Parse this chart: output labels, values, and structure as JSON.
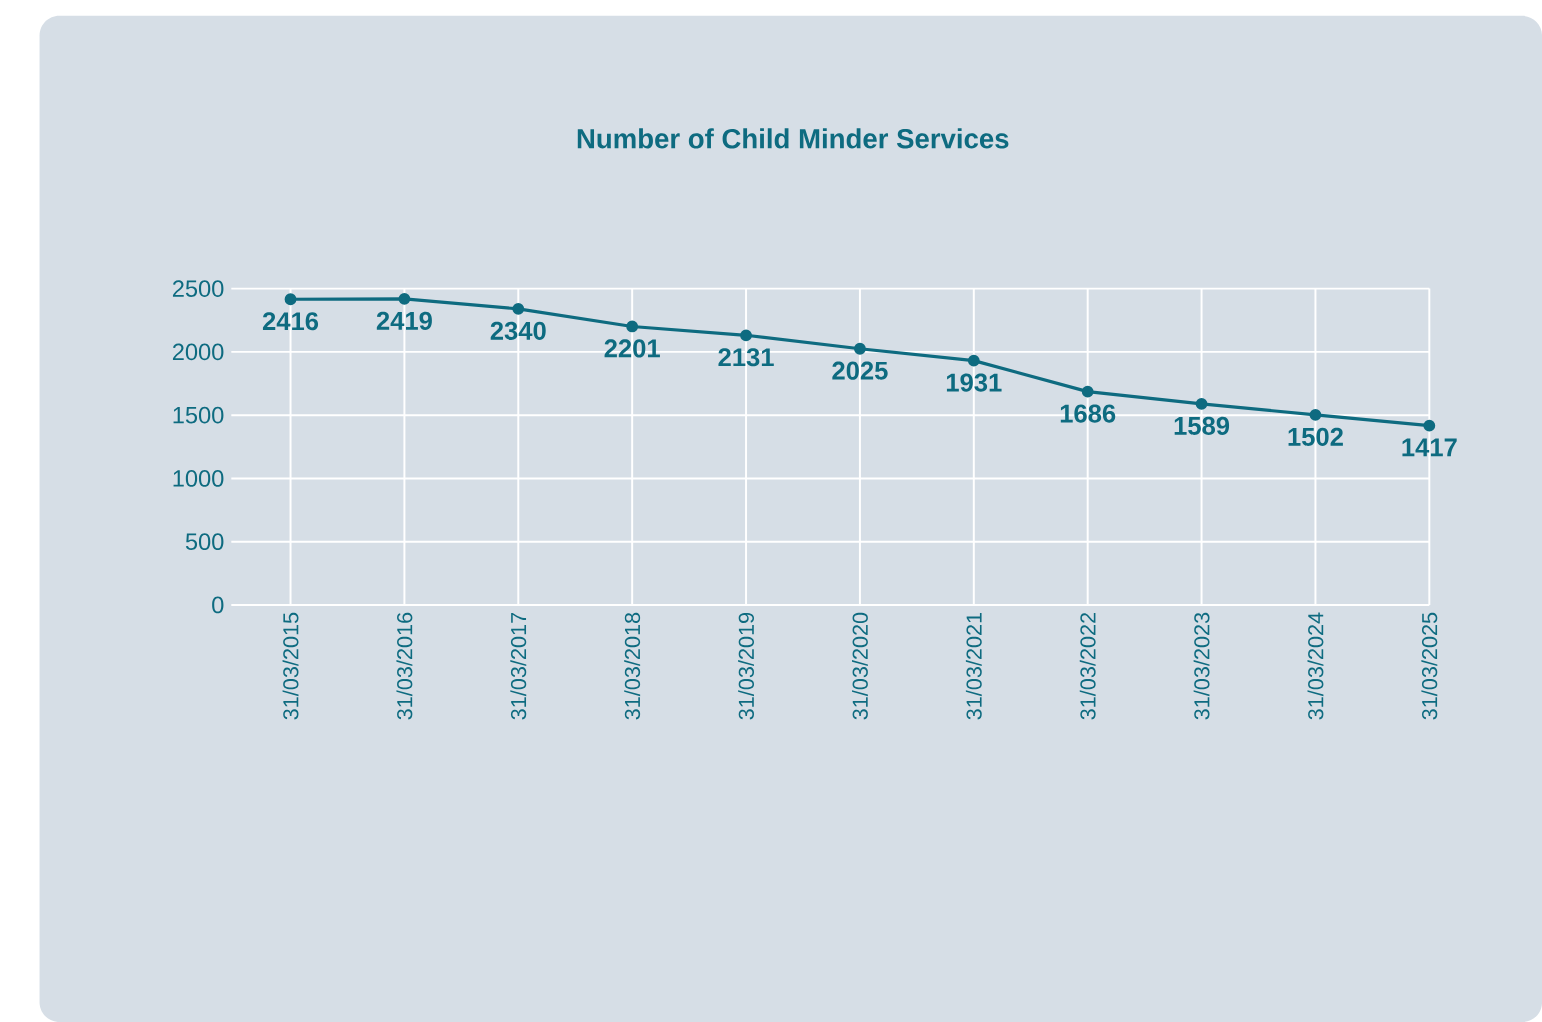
{
  "chart_data": {
    "type": "line",
    "title": "Number of Child Minder Services",
    "categories": [
      "31/03/2015",
      "31/03/2016",
      "31/03/2017",
      "31/03/2018",
      "31/03/2019",
      "31/03/2020",
      "31/03/2021",
      "31/03/2022",
      "31/03/2023",
      "31/03/2024",
      "31/03/2025"
    ],
    "series": [
      {
        "color": "#0e6b80",
        "values": [
          2416,
          2419,
          2340,
          2201,
          2131,
          2025,
          1931,
          1686,
          1589,
          1502,
          1417
        ]
      }
    ],
    "ylim": [
      0,
      2500
    ],
    "yticks": [
      0,
      500,
      1000,
      1500,
      2000,
      2500
    ],
    "grid": true,
    "marker": "circle",
    "line_style": "solid",
    "data_labels": true,
    "legend": false
  }
}
